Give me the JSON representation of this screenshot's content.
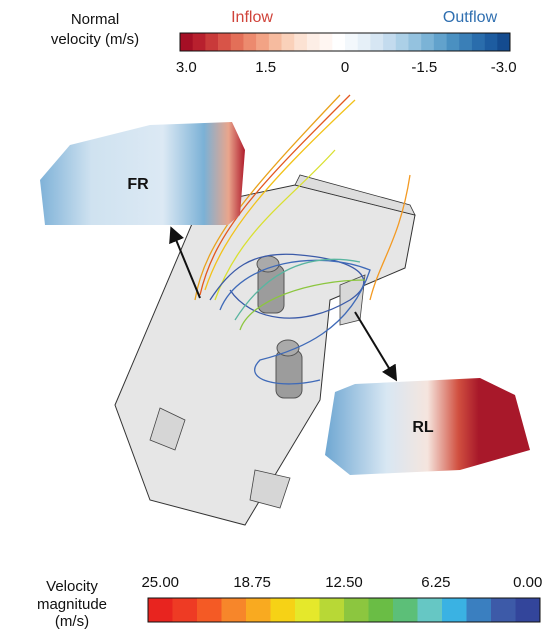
{
  "top_legend": {
    "title_lines": [
      "Normal",
      "velocity (m/s)"
    ],
    "inflow": "Inflow",
    "outflow": "Outflow",
    "ticks": [
      "3.0",
      "1.5",
      "0",
      "-1.5",
      "-3.0"
    ],
    "colors": [
      "#a50f25",
      "#b8202e",
      "#c93a3a",
      "#d85448",
      "#e36f58",
      "#ec8a6e",
      "#f2a385",
      "#f6bb9f",
      "#fad1ba",
      "#fce2d3",
      "#fdeee6",
      "#fff6f2",
      "#ffffff",
      "#f3f8fc",
      "#e6f0f8",
      "#d6e6f3",
      "#c3dbee",
      "#acd0e7",
      "#94c2df",
      "#7bb3d6",
      "#62a2cc",
      "#4a90c1",
      "#3a7fb7",
      "#2a6dac",
      "#1d5ca0",
      "#144b8f"
    ]
  },
  "bottom_legend": {
    "title_lines": [
      "Velocity",
      "magnitude",
      "(m/s)"
    ],
    "ticks": [
      "25.00",
      "18.75",
      "12.50",
      "6.25",
      "0.00"
    ],
    "colors": [
      "#e8241f",
      "#ee3b24",
      "#f45a25",
      "#f7862a",
      "#f9aa20",
      "#f6d216",
      "#e5e82b",
      "#b8d836",
      "#8cc63f",
      "#6abd45",
      "#5cbf78",
      "#66c7c4",
      "#3ab2e3",
      "#3a7fc0",
      "#3d5aa8",
      "#33459b"
    ]
  },
  "windows": {
    "front": "FR",
    "rear": "RL"
  }
}
